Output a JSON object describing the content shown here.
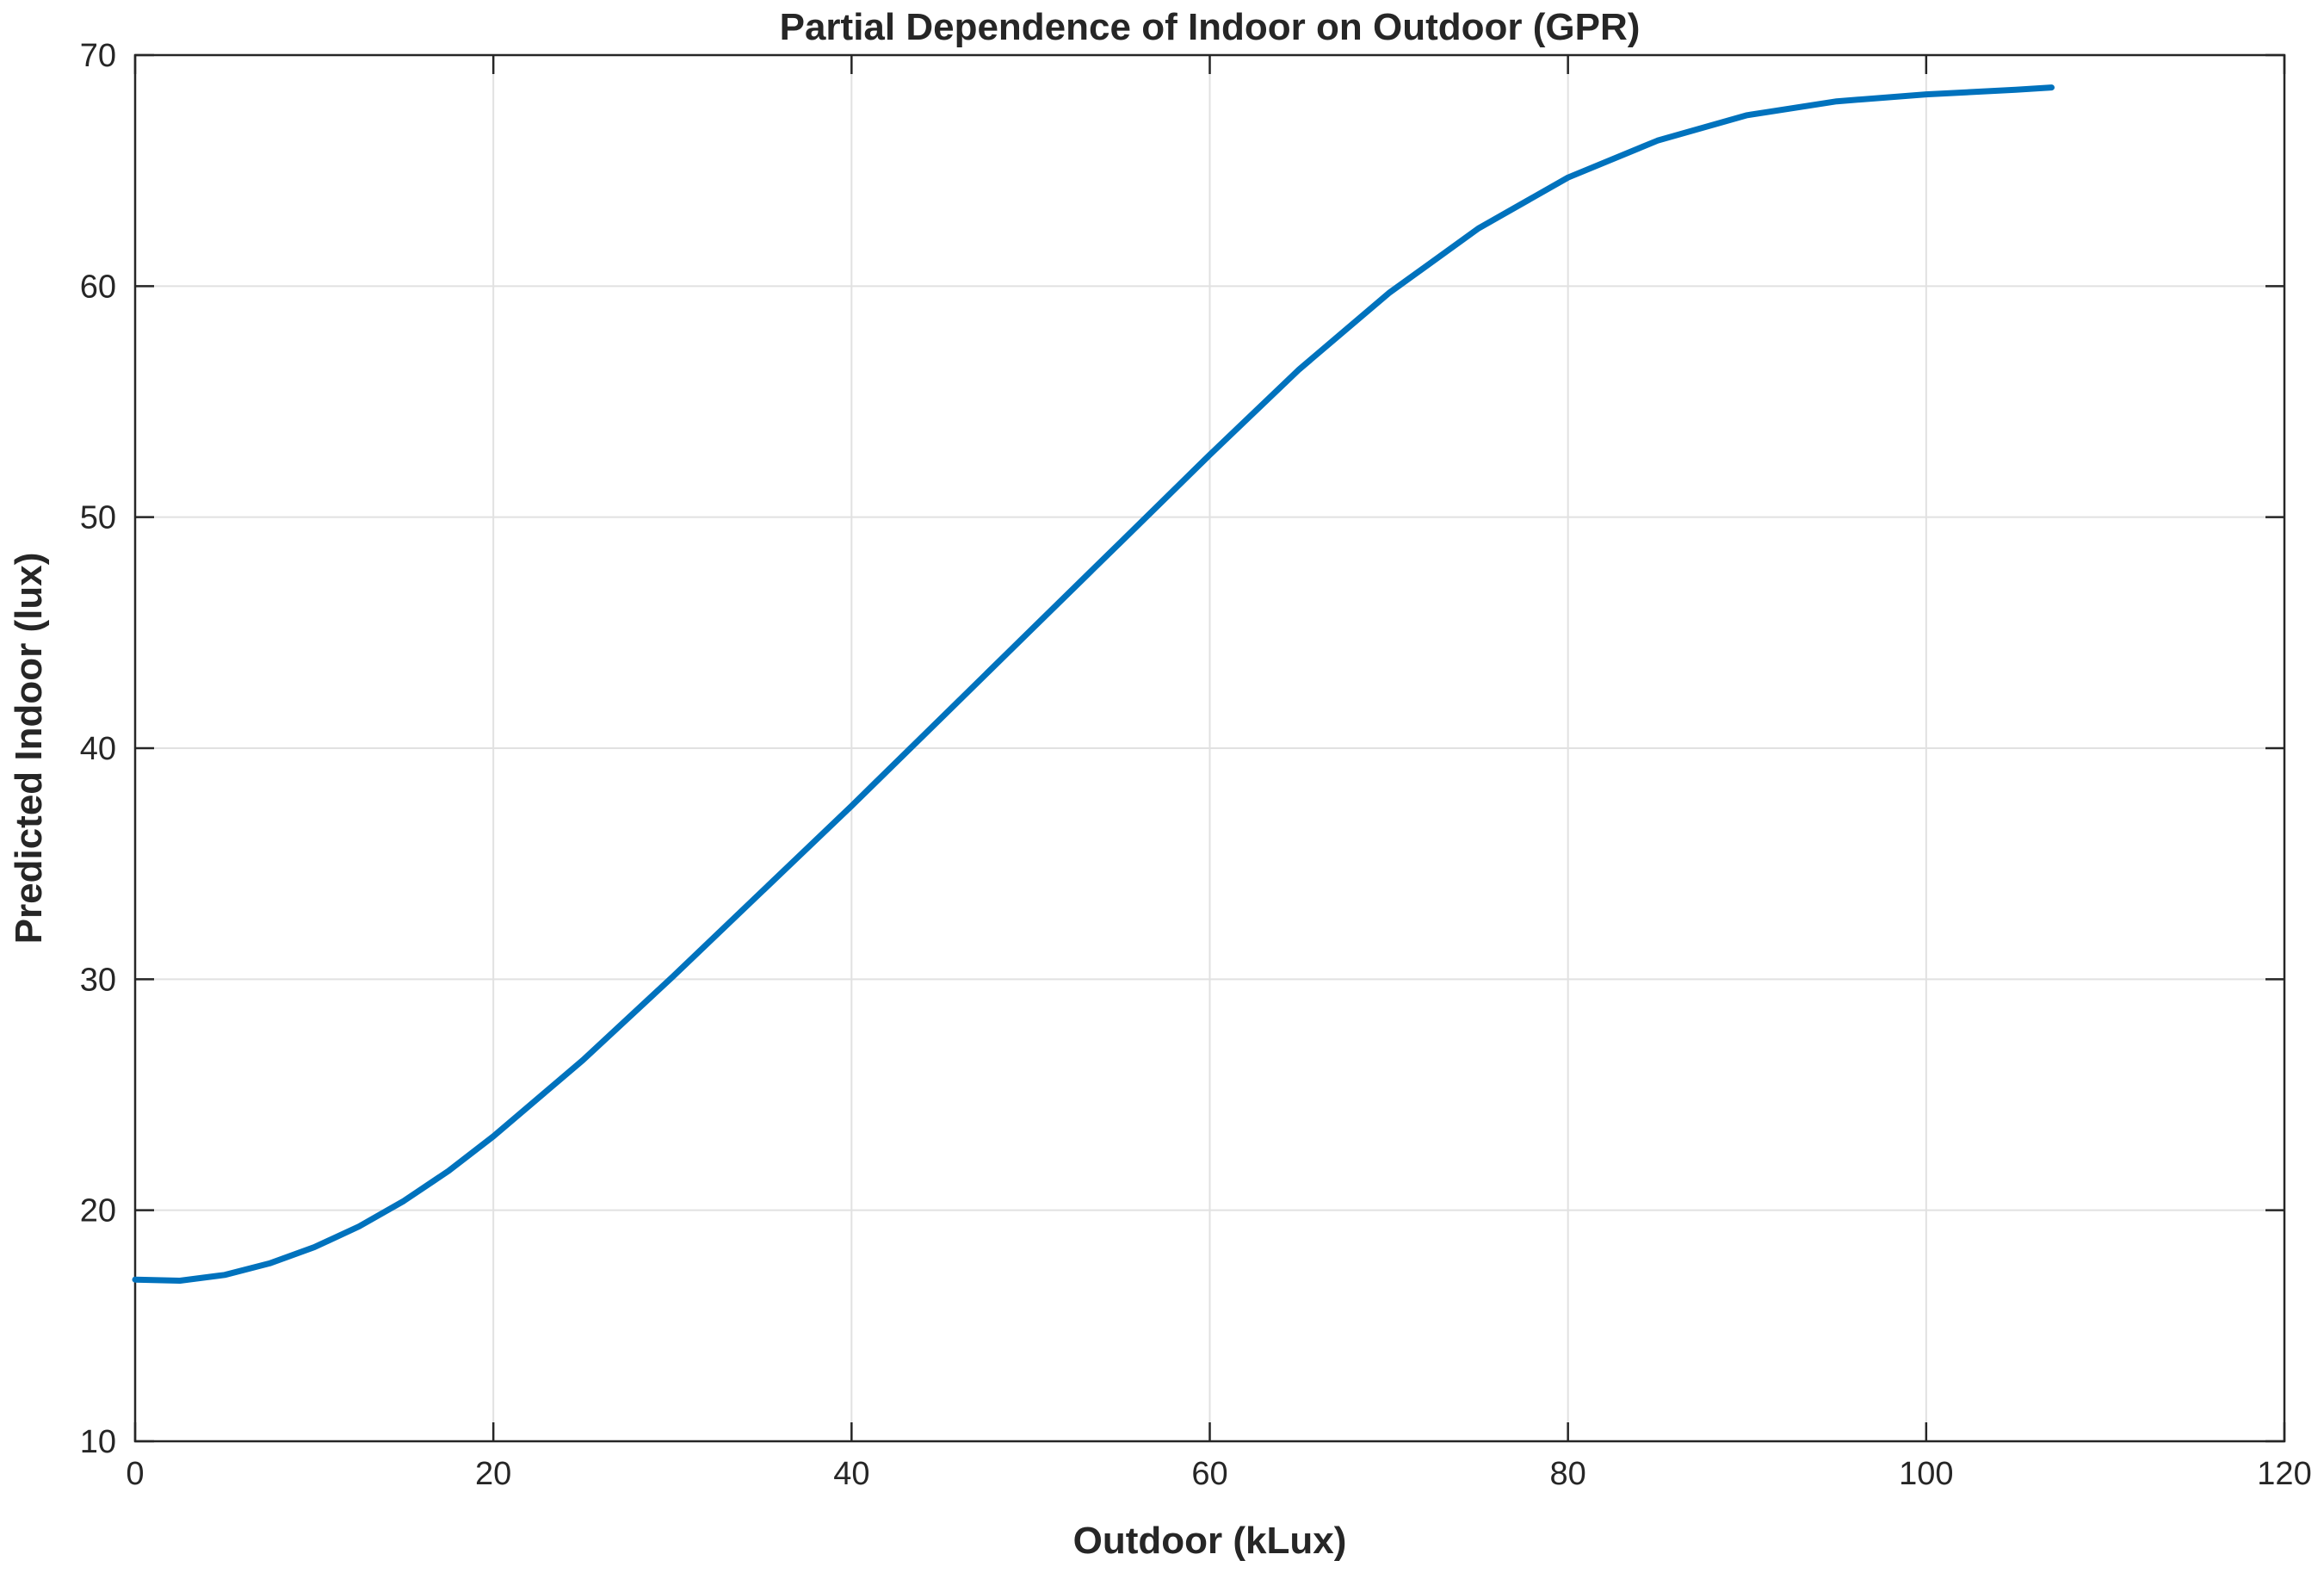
{
  "chart_data": {
    "type": "line",
    "title": "Partial Dependence of Indoor on Outdoor (GPR)",
    "xlabel": "Outdoor (kLux)",
    "ylabel": "Predicted Indoor (lux)",
    "xlim": [
      0,
      120
    ],
    "ylim": [
      10,
      70
    ],
    "xticks": [
      0,
      20,
      40,
      60,
      80,
      100,
      120
    ],
    "yticks": [
      10,
      20,
      30,
      40,
      50,
      60,
      70
    ],
    "xtick_labels": [
      "0",
      "20",
      "40",
      "60",
      "80",
      "100",
      "120"
    ],
    "ytick_labels": [
      "10",
      "20",
      "30",
      "40",
      "50",
      "60",
      "70"
    ],
    "grid": true,
    "line_color": "#0072BD",
    "series": [
      {
        "x": [
          0,
          2.5,
          5,
          7.5,
          10,
          12.5,
          15,
          17.5,
          20,
          25,
          30,
          35,
          40,
          45,
          50,
          55,
          60,
          65,
          70,
          75,
          80,
          85,
          90,
          95,
          100,
          105,
          107
        ],
        "y": [
          17.0,
          16.95,
          17.2,
          17.7,
          18.4,
          19.3,
          20.4,
          21.7,
          23.2,
          26.5,
          30.1,
          33.8,
          37.5,
          41.3,
          45.1,
          48.9,
          52.7,
          56.4,
          59.7,
          62.5,
          64.7,
          66.3,
          67.4,
          68.0,
          68.3,
          68.5,
          68.6
        ]
      }
    ]
  }
}
